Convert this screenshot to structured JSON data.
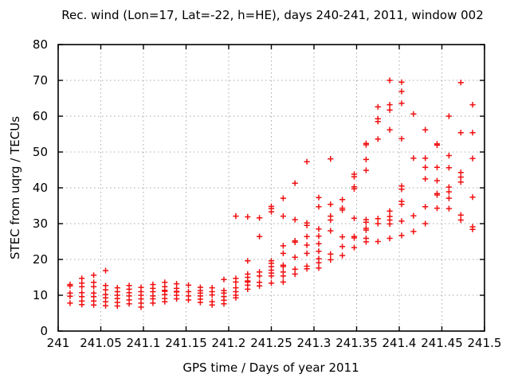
{
  "title": "Rec. wind (Lon=17, Lat=-22, h=HE), days 240-241, 2011, window 002",
  "chart_data": {
    "type": "scatter",
    "title": "Rec. wind (Lon=17, Lat=-22, h=HE), days 240-241, 2011, window 002",
    "xlabel": "GPS time / Days of year 2011",
    "ylabel": "STEC from uqrg / TECUs",
    "xlim": [
      241,
      241.5
    ],
    "ylim": [
      0,
      80
    ],
    "grid": true,
    "legend": "none",
    "marker": "plus",
    "marker_color": "#f01010",
    "grid_color": "#a8a8a8",
    "axis_color": "#000000",
    "x_ticks": [
      {
        "value": 241.0,
        "label": "241"
      },
      {
        "value": 241.05,
        "label": "241.05"
      },
      {
        "value": 241.1,
        "label": "241.1"
      },
      {
        "value": 241.15,
        "label": "241.15"
      },
      {
        "value": 241.2,
        "label": "241.2"
      },
      {
        "value": 241.25,
        "label": "241.25"
      },
      {
        "value": 241.3,
        "label": "241.3"
      },
      {
        "value": 241.35,
        "label": "241.35"
      },
      {
        "value": 241.4,
        "label": "241.4"
      },
      {
        "value": 241.45,
        "label": "241.45"
      },
      {
        "value": 241.5,
        "label": "241.5"
      }
    ],
    "y_ticks": [
      {
        "value": 0,
        "label": "0"
      },
      {
        "value": 10,
        "label": "10"
      },
      {
        "value": 20,
        "label": "20"
      },
      {
        "value": 30,
        "label": "30"
      },
      {
        "value": 40,
        "label": "40"
      },
      {
        "value": 50,
        "label": "50"
      },
      {
        "value": 60,
        "label": "60"
      },
      {
        "value": 70,
        "label": "70"
      },
      {
        "value": 80,
        "label": "80"
      }
    ],
    "series": [
      {
        "name": "STEC",
        "points": [
          {
            "x": 241.0139,
            "ys": [
              13.0,
              12.6,
              10.6,
              9.7,
              7.8
            ]
          },
          {
            "x": 241.0278,
            "ys": [
              14.7,
              13.4,
              12.4,
              10.7,
              9.6,
              8.4,
              7.4
            ]
          },
          {
            "x": 241.0417,
            "ys": [
              15.6,
              13.6,
              12.4,
              10.6,
              9.6,
              8.4,
              7.3
            ]
          },
          {
            "x": 241.0556,
            "ys": [
              16.9,
              12.7,
              11.5,
              10.2,
              9.3,
              8.2,
              7.1
            ]
          },
          {
            "x": 241.0694,
            "ys": [
              12.1,
              11.0,
              10.0,
              9.1,
              8.0,
              7.0
            ]
          },
          {
            "x": 241.0833,
            "ys": [
              12.7,
              11.7,
              10.7,
              9.8,
              8.7,
              7.6
            ]
          },
          {
            "x": 241.0972,
            "ys": [
              12.2,
              11.0,
              10.0,
              9.0,
              7.8,
              6.7
            ]
          },
          {
            "x": 241.1111,
            "ys": [
              13.0,
              11.9,
              11.0,
              9.8,
              9.0,
              7.8
            ]
          },
          {
            "x": 241.125,
            "ys": [
              13.6,
              12.4,
              11.4,
              11.1,
              10.2,
              9.1,
              8.2
            ]
          },
          {
            "x": 241.1389,
            "ys": [
              13.2,
              11.9,
              11.1,
              10.9,
              10.0,
              9.0
            ]
          },
          {
            "x": 241.1528,
            "ys": [
              12.8,
              11.0,
              9.8,
              8.7
            ]
          },
          {
            "x": 241.1667,
            "ys": [
              12.2,
              11.3,
              10.6,
              9.8,
              8.9,
              8.0
            ]
          },
          {
            "x": 241.1806,
            "ys": [
              12.1,
              11.0,
              10.1,
              8.2,
              7.3
            ]
          },
          {
            "x": 241.1944,
            "ys": [
              14.4,
              11.3,
              10.6,
              9.6,
              8.6,
              7.6
            ]
          },
          {
            "x": 241.2083,
            "ys": [
              32.1,
              14.7,
              13.7,
              12.1,
              11.0,
              10.0,
              9.3
            ]
          },
          {
            "x": 241.2222,
            "ys": [
              31.9,
              19.6,
              15.9,
              15.0,
              14.0,
              13.7,
              12.8,
              11.7
            ]
          },
          {
            "x": 241.2361,
            "ys": [
              31.6,
              26.4,
              16.5,
              15.4,
              13.6,
              12.6
            ]
          },
          {
            "x": 241.25,
            "ys": [
              34.8,
              34.2,
              33.3,
              19.6,
              18.9,
              18.0,
              17.0,
              16.2,
              15.4,
              13.4
            ]
          },
          {
            "x": 241.2639,
            "ys": [
              37.1,
              32.1,
              23.8,
              21.7,
              18.4,
              18.0,
              16.5,
              15.4,
              13.7
            ]
          },
          {
            "x": 241.2778,
            "ys": [
              41.3,
              31.1,
              25.2,
              24.8,
              20.6,
              17.3,
              15.9
            ]
          },
          {
            "x": 241.2917,
            "ys": [
              47.3,
              30.2,
              29.5,
              26.4,
              24.0,
              21.7,
              18.1,
              17.4
            ]
          },
          {
            "x": 241.3056,
            "ys": [
              37.3,
              34.7,
              28.5,
              26.5,
              24.4,
              22.3,
              20.2,
              19.1,
              17.6
            ]
          },
          {
            "x": 241.3194,
            "ys": [
              48.1,
              35.4,
              32.1,
              31.0,
              28.0,
              21.5,
              19.9
            ]
          },
          {
            "x": 241.3333,
            "ys": [
              36.7,
              34.3,
              33.8,
              26.3,
              23.6,
              21.1
            ]
          },
          {
            "x": 241.3472,
            "ys": [
              43.8,
              43.1,
              40.3,
              39.7,
              31.5,
              26.4,
              26.0,
              23.3
            ]
          },
          {
            "x": 241.3611,
            "ys": [
              52.4,
              52.0,
              47.9,
              44.9,
              31.1,
              30.4,
              28.7,
              28.2,
              25.9,
              24.9
            ]
          },
          {
            "x": 241.375,
            "ys": [
              62.6,
              59.3,
              58.5,
              53.6,
              31.4,
              30.0,
              25.0
            ]
          },
          {
            "x": 241.3889,
            "ys": [
              70.0,
              63.2,
              61.7,
              56.2,
              33.5,
              32.0,
              31.0,
              29.9,
              25.9
            ]
          },
          {
            "x": 241.4028,
            "ys": [
              69.5,
              66.9,
              63.6,
              53.7,
              40.5,
              39.6,
              36.2,
              35.4,
              30.7,
              26.7
            ]
          },
          {
            "x": 241.4167,
            "ys": [
              60.6,
              48.3,
              32.2,
              27.8
            ]
          },
          {
            "x": 241.4306,
            "ys": [
              56.2,
              48.3,
              45.7,
              42.5,
              34.7,
              30.0
            ]
          },
          {
            "x": 241.4444,
            "ys": [
              52.3,
              51.9,
              45.7,
              42.0,
              38.4,
              38.0,
              34.3
            ]
          },
          {
            "x": 241.4583,
            "ys": [
              60.0,
              49.0,
              45.6,
              40.2,
              38.9,
              37.1,
              34.2
            ]
          },
          {
            "x": 241.4722,
            "ys": [
              69.4,
              55.4,
              44.3,
              43.0,
              41.6,
              32.4,
              31.0
            ]
          },
          {
            "x": 241.4861,
            "ys": [
              63.2,
              55.4,
              48.2,
              37.4,
              29.1,
              28.4
            ]
          }
        ]
      }
    ]
  }
}
